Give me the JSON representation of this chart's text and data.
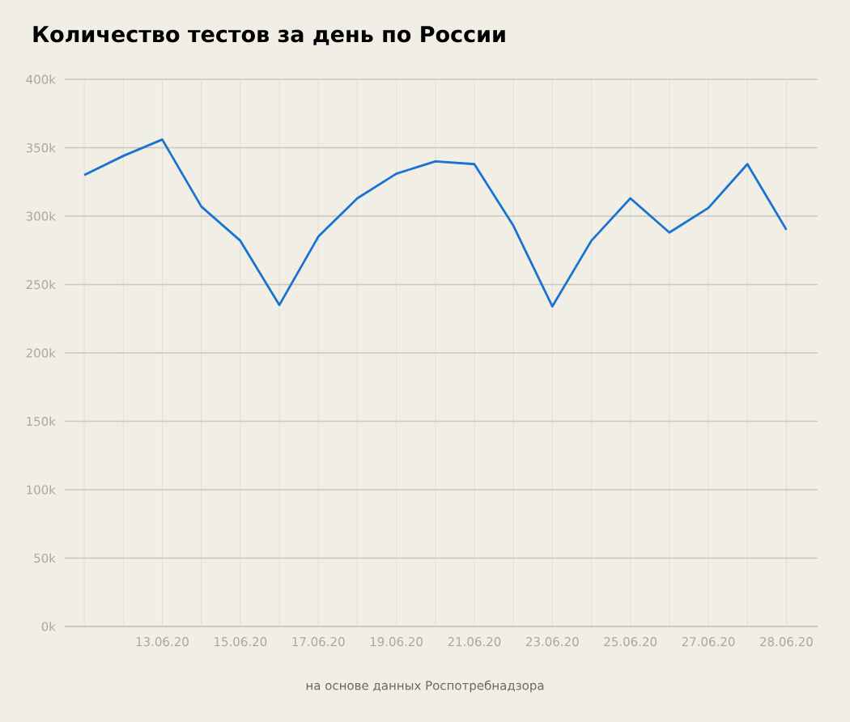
{
  "chart_data": {
    "type": "line",
    "title": "Количество тестов за день по России",
    "categories": [
      null,
      null,
      "13.06.20",
      null,
      "15.06.20",
      null,
      "17.06.20",
      null,
      "19.06.20",
      null,
      "21.06.20",
      null,
      "23.06.20",
      null,
      "25.06.20",
      null,
      "27.06.20",
      null,
      "28.06.20"
    ],
    "series": [
      {
        "color": "#1a73d0",
        "values": [
          330000,
          344000,
          356000,
          307000,
          282000,
          235000,
          285000,
          313000,
          331000,
          340000,
          338000,
          293000,
          234000,
          282000,
          313000,
          288000,
          306000,
          338000,
          290000
        ]
      }
    ],
    "ylim": [
      0,
      400000
    ],
    "yticks": [
      {
        "value": 0,
        "label": "0k"
      },
      {
        "value": 50000,
        "label": "50k"
      },
      {
        "value": 100000,
        "label": "100k"
      },
      {
        "value": 150000,
        "label": "150k"
      },
      {
        "value": 200000,
        "label": "200k"
      },
      {
        "value": 250000,
        "label": "250k"
      },
      {
        "value": 300000,
        "label": "300k"
      },
      {
        "value": 350000,
        "label": "350k"
      },
      {
        "value": 400000,
        "label": "400k"
      }
    ],
    "grid": true,
    "marker": "none",
    "line_style": "solid",
    "annotations": [
      "на основе данных Роспотребнадзора"
    ]
  }
}
